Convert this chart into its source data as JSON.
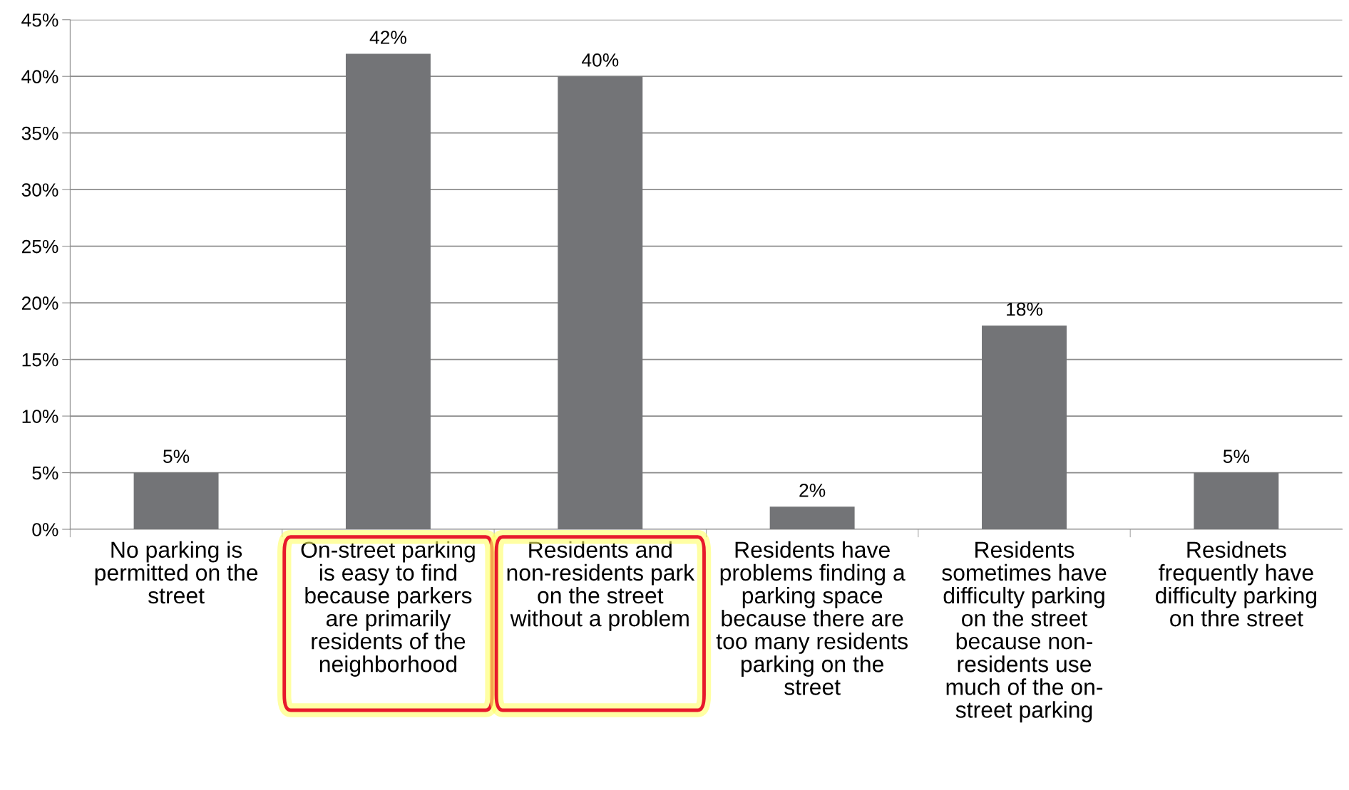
{
  "chart_data": {
    "type": "bar",
    "categories": [
      "No parking is\npermitted on the\nstreet",
      "On-street parking\nis easy to find\nbecause parkers\nare primarily\nresidents of the\nneighborhood",
      "Residents and\nnon-residents park\non the street\nwithout a problem",
      "Residents have\nproblems finding a\nparking space\nbecause there are\ntoo many residents\nparking on the\nstreet",
      "Residents\nsometimes have\ndifficulty parking\non the street\nbecause non-\nresidents use\nmuch of the on-\nstreet parking",
      "Residnets\nfrequently have\ndifficulty parking\non thre street"
    ],
    "values": [
      5,
      42,
      40,
      2,
      18,
      5
    ],
    "value_labels": [
      "5%",
      "42%",
      "40%",
      "2%",
      "18%",
      "5%"
    ],
    "color": "#737477",
    "ylim": [
      0,
      45
    ],
    "yticks": [
      {
        "value": 0,
        "label": "0%"
      },
      {
        "value": 5,
        "label": "5%"
      },
      {
        "value": 10,
        "label": "10%"
      },
      {
        "value": 15,
        "label": "15%"
      },
      {
        "value": 20,
        "label": "20%"
      },
      {
        "value": 25,
        "label": "25%"
      },
      {
        "value": 30,
        "label": "30%"
      },
      {
        "value": 35,
        "label": "35%"
      },
      {
        "value": 40,
        "label": "40%"
      },
      {
        "value": 45,
        "label": "45%"
      }
    ],
    "grid": "y",
    "legend": false
  }
}
